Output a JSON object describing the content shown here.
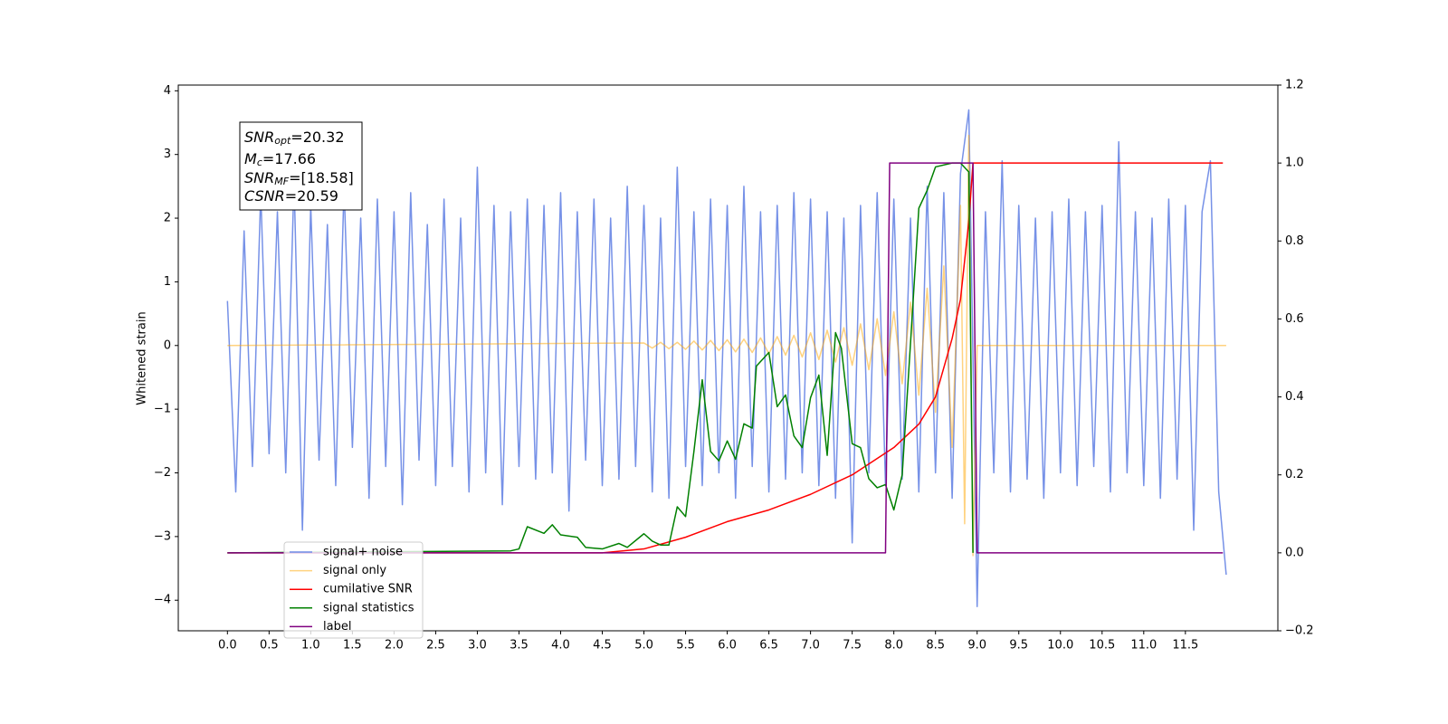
{
  "chart_data": {
    "type": "line",
    "y_label": "Whitened strain",
    "xlim": [
      -0.59,
      12.61
    ],
    "ylim": [
      -4.48,
      4.09
    ],
    "y2lim": [
      -0.2,
      1.2
    ],
    "xticks": [
      {
        "value": 0,
        "label": "0.0"
      },
      0.5,
      {
        "value": 1,
        "label": "1.0"
      },
      1.5,
      {
        "value": 2,
        "label": "2.0"
      },
      2.5,
      {
        "value": 3,
        "label": "3.0"
      },
      3.5,
      {
        "value": 4,
        "label": "4.0"
      },
      4.5,
      {
        "value": 5,
        "label": "5.0"
      },
      5.5,
      {
        "value": 6,
        "label": "6.0"
      },
      6.5,
      {
        "value": 7,
        "label": "7.0"
      },
      7.5,
      {
        "value": 8,
        "label": "8.0"
      },
      8.5,
      {
        "value": 9,
        "label": "9.0"
      },
      9.5,
      {
        "value": 10,
        "label": "10.0"
      },
      10.5,
      {
        "value": 11,
        "label": "11.0"
      },
      11.5
    ],
    "yticks": [
      {
        "value": -4,
        "label": "−4"
      },
      {
        "value": -3,
        "label": "−3"
      },
      {
        "value": -2,
        "label": "−2"
      },
      {
        "value": -1,
        "label": "−1"
      },
      0,
      1,
      2,
      3,
      4
    ],
    "y2ticks": [
      {
        "value": -0.2,
        "label": "−0.2"
      },
      {
        "value": 0,
        "label": "0.0"
      },
      {
        "value": 0.2,
        "label": "0.2"
      },
      {
        "value": 0.4,
        "label": "0.4"
      },
      {
        "value": 0.6,
        "label": "0.6"
      },
      {
        "value": 0.8,
        "label": "0.8"
      },
      {
        "value": 1,
        "label": "1.0"
      },
      {
        "value": 1.2,
        "label": "1.2"
      }
    ],
    "legend": "lower left",
    "annotations": [
      {
        "symbol": "SNR",
        "sub": "opt",
        "value": "=20.32"
      },
      {
        "symbol": "M",
        "sub": "c",
        "value": "=17.66"
      },
      {
        "symbol": "SNR",
        "sub": "MF",
        "value": "=[18.58]"
      },
      {
        "symbol": "CSNR",
        "value": "=20.59"
      }
    ],
    "series": [
      {
        "name": "signal+ noise",
        "color": "#6f8be6",
        "x": [
          0,
          0.1,
          0.2,
          0.3,
          0.4,
          0.5,
          0.6,
          0.7,
          0.8,
          0.9,
          1,
          1.1,
          1.2,
          1.3,
          1.4,
          1.5,
          1.6,
          1.7,
          1.8,
          1.9,
          2,
          2.1,
          2.2,
          2.3,
          2.4,
          2.5,
          2.6,
          2.7,
          2.8,
          2.9,
          3,
          3.1,
          3.2,
          3.3,
          3.4,
          3.5,
          3.6,
          3.7,
          3.8,
          3.9,
          4,
          4.1,
          4.2,
          4.3,
          4.4,
          4.5,
          4.6,
          4.7,
          4.8,
          4.9,
          5,
          5.1,
          5.2,
          5.3,
          5.4,
          5.5,
          5.6,
          5.7,
          5.8,
          5.9,
          6,
          6.1,
          6.2,
          6.3,
          6.4,
          6.5,
          6.6,
          6.7,
          6.8,
          6.9,
          7,
          7.1,
          7.2,
          7.3,
          7.4,
          7.5,
          7.6,
          7.7,
          7.8,
          7.9,
          8,
          8.1,
          8.2,
          8.3,
          8.4,
          8.5,
          8.6,
          8.7,
          8.8,
          8.9,
          9,
          9.1,
          9.2,
          9.3,
          9.4,
          9.5,
          9.6,
          9.7,
          9.8,
          9.9,
          10,
          10.1,
          10.2,
          10.3,
          10.4,
          10.5,
          10.6,
          10.7,
          10.8,
          10.9,
          11,
          11.1,
          11.2,
          11.3,
          11.4,
          11.5,
          11.6,
          11.7,
          11.8,
          11.9,
          11.99
        ],
        "values": [
          0.7,
          -2.3,
          1.8,
          -1.9,
          2.4,
          -1.7,
          2.1,
          -2.0,
          2.6,
          -2.9,
          2.2,
          -1.8,
          1.9,
          -2.2,
          2.5,
          -1.6,
          2.0,
          -2.4,
          2.3,
          -1.9,
          2.1,
          -2.5,
          2.4,
          -1.8,
          1.9,
          -2.2,
          2.3,
          -1.9,
          2.0,
          -2.3,
          2.8,
          -2.0,
          2.2,
          -2.5,
          2.1,
          -1.9,
          2.3,
          -2.1,
          2.2,
          -2.0,
          2.4,
          -2.6,
          2.1,
          -1.8,
          2.3,
          -2.2,
          2.0,
          -2.1,
          2.5,
          -1.9,
          2.2,
          -2.3,
          2.0,
          -2.4,
          2.8,
          -1.9,
          2.1,
          -2.2,
          2.3,
          -2.0,
          2.2,
          -2.4,
          2.5,
          -1.9,
          2.1,
          -2.3,
          2.2,
          -2.1,
          2.4,
          -2.0,
          2.3,
          -2.2,
          2.1,
          -2.4,
          2.0,
          -3.1,
          2.2,
          -2.0,
          2.4,
          -2.2,
          2.3,
          -2.1,
          2.0,
          -2.3,
          2.5,
          -2.0,
          2.4,
          -2.4,
          2.7,
          3.7,
          -4.1,
          2.1,
          -2.0,
          2.9,
          -2.3,
          2.2,
          -2.1,
          2.0,
          -2.4,
          2.1,
          -2.0,
          2.3,
          -2.2,
          2.1,
          -1.9,
          2.2,
          -2.3,
          3.2,
          -2.0,
          2.1,
          -2.2,
          2.0,
          -2.4,
          2.3,
          -2.1,
          2.2,
          -2.9,
          2.1,
          2.9,
          -2.3,
          -3.6
        ]
      },
      {
        "name": "signal only",
        "color": "#ffa500",
        "x": [
          0,
          5,
          5.1,
          5.2,
          5.3,
          5.4,
          5.5,
          5.6,
          5.7,
          5.8,
          5.9,
          6,
          6.1,
          6.2,
          6.3,
          6.4,
          6.5,
          6.6,
          6.7,
          6.8,
          6.9,
          7,
          7.1,
          7.2,
          7.3,
          7.4,
          7.5,
          7.6,
          7.7,
          7.8,
          7.9,
          8,
          8.1,
          8.2,
          8.3,
          8.4,
          8.5,
          8.6,
          8.7,
          8.8,
          8.85,
          8.9,
          8.95,
          9,
          11.99
        ],
        "values": [
          0,
          0.04,
          -0.04,
          0.05,
          -0.05,
          0.05,
          -0.06,
          0.07,
          -0.07,
          0.08,
          -0.08,
          0.09,
          -0.1,
          0.1,
          -0.11,
          0.12,
          -0.13,
          0.14,
          -0.15,
          0.16,
          -0.18,
          0.2,
          -0.22,
          0.24,
          -0.26,
          0.28,
          -0.31,
          0.34,
          -0.38,
          0.42,
          -0.47,
          0.53,
          -0.6,
          0.68,
          -0.78,
          0.9,
          -1.05,
          1.25,
          -1.6,
          2.2,
          -2.8,
          3.3,
          -3.3,
          0,
          0
        ]
      },
      {
        "name": "cumilative SNR",
        "color": "#ff0000",
        "axis": "y2",
        "x": [
          0,
          4.5,
          5,
          5.5,
          6,
          6.5,
          7,
          7.5,
          8,
          8.3,
          8.5,
          8.7,
          8.8,
          8.9,
          8.95,
          11.95
        ],
        "values": [
          0,
          0,
          0.01,
          0.04,
          0.08,
          0.11,
          0.15,
          0.2,
          0.27,
          0.33,
          0.4,
          0.55,
          0.65,
          0.85,
          1,
          1
        ]
      },
      {
        "name": "signal statistics",
        "color": "#008000",
        "axis": "y2",
        "x": [
          0,
          3.4,
          3.5,
          3.6,
          3.8,
          3.9,
          4,
          4.2,
          4.3,
          4.5,
          4.7,
          4.8,
          5,
          5.1,
          5.2,
          5.3,
          5.4,
          5.5,
          5.6,
          5.7,
          5.8,
          5.9,
          6,
          6.1,
          6.2,
          6.3,
          6.35,
          6.5,
          6.6,
          6.7,
          6.8,
          6.9,
          7,
          7.1,
          7.2,
          7.3,
          7.37,
          7.5,
          7.6,
          7.7,
          7.8,
          7.9,
          8,
          8.1,
          8.2,
          8.3,
          8.4,
          8.5,
          8.7,
          8.8,
          8.9,
          8.95
        ],
        "values": [
          0,
          0.005,
          0.01,
          0.067,
          0.05,
          0.072,
          0.046,
          0.04,
          0.014,
          0.01,
          0.024,
          0.014,
          0.049,
          0.03,
          0.02,
          0.02,
          0.118,
          0.093,
          0.26,
          0.444,
          0.26,
          0.236,
          0.287,
          0.24,
          0.331,
          0.32,
          0.479,
          0.514,
          0.375,
          0.405,
          0.3,
          0.27,
          0.398,
          0.456,
          0.25,
          0.565,
          0.525,
          0.28,
          0.27,
          0.19,
          0.167,
          0.175,
          0.11,
          0.2,
          0.537,
          0.884,
          0.93,
          0.99,
          1.0,
          1.0,
          0.977,
          0
        ]
      },
      {
        "name": "label",
        "color": "#800080",
        "axis": "y2",
        "x": [
          0,
          7.9,
          7.95,
          8.95,
          9.0,
          11.95
        ],
        "values": [
          0,
          0,
          1,
          1,
          0,
          0
        ]
      }
    ]
  }
}
